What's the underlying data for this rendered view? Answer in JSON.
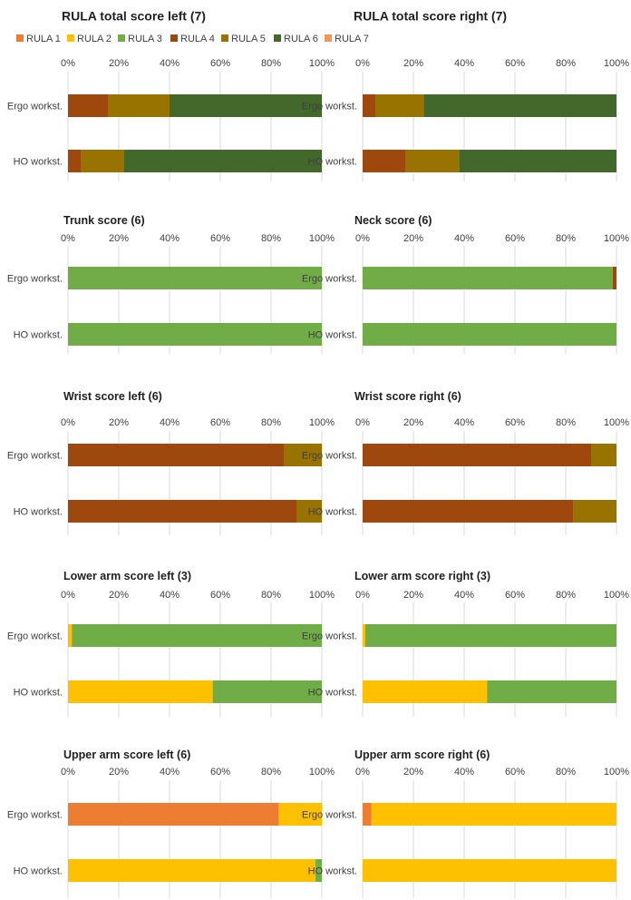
{
  "legend": [
    {
      "name": "RULA 1",
      "color": "#ED7D31"
    },
    {
      "name": "RULA 2",
      "color": "#FFC000"
    },
    {
      "name": "RULA 3",
      "color": "#70AD47"
    },
    {
      "name": "RULA 4",
      "color": "#9E480E"
    },
    {
      "name": "RULA 5",
      "color": "#997300"
    },
    {
      "name": "RULA 6",
      "color": "#43682B"
    },
    {
      "name": "RULA 7",
      "color": "#F1975A"
    }
  ],
  "chart_data": [
    {
      "type": "bar",
      "orientation": "horizontal",
      "stacked": "percent",
      "title": "RULA total score left (7)",
      "categories": [
        "Ergo workst.",
        "HO workst."
      ],
      "xticks": [
        "0%",
        "20%",
        "40%",
        "60%",
        "80%",
        "100%"
      ],
      "xlim": [
        0,
        100
      ],
      "grid": true,
      "series": [
        {
          "name": "RULA 4",
          "values": [
            16,
            5
          ]
        },
        {
          "name": "RULA 5",
          "values": [
            24,
            17
          ]
        },
        {
          "name": "RULA 6",
          "values": [
            60,
            78
          ]
        }
      ]
    },
    {
      "type": "bar",
      "orientation": "horizontal",
      "stacked": "percent",
      "title": "RULA total score right (7)",
      "categories": [
        "Ergo workst.",
        "HO workst."
      ],
      "xticks": [
        "0%",
        "20%",
        "40%",
        "60%",
        "80%",
        "100%"
      ],
      "xlim": [
        0,
        100
      ],
      "grid": true,
      "series": [
        {
          "name": "RULA 4",
          "values": [
            5,
            17
          ]
        },
        {
          "name": "RULA 5",
          "values": [
            19,
            21
          ]
        },
        {
          "name": "RULA 6",
          "values": [
            76,
            62
          ]
        }
      ]
    },
    {
      "type": "bar",
      "orientation": "horizontal",
      "stacked": "percent",
      "title": "Trunk score (6)",
      "categories": [
        "Ergo workst.",
        "HO workst."
      ],
      "xticks": [
        "0%",
        "20%",
        "40%",
        "60%",
        "80%",
        "100%"
      ],
      "xlim": [
        0,
        100
      ],
      "grid": true,
      "series": [
        {
          "name": "RULA 3",
          "values": [
            100,
            100
          ]
        }
      ]
    },
    {
      "type": "bar",
      "orientation": "horizontal",
      "stacked": "percent",
      "title": "Neck score (6)",
      "categories": [
        "Ergo workst.",
        "HO workst."
      ],
      "xticks": [
        "0%",
        "20%",
        "40%",
        "60%",
        "80%",
        "100%"
      ],
      "xlim": [
        0,
        100
      ],
      "grid": true,
      "series": [
        {
          "name": "RULA 3",
          "values": [
            98.5,
            100
          ]
        },
        {
          "name": "RULA 4",
          "values": [
            1.5,
            0
          ]
        }
      ]
    },
    {
      "type": "bar",
      "orientation": "horizontal",
      "stacked": "percent",
      "title": "Wrist score left (6)",
      "categories": [
        "Ergo workst.",
        "HO workst."
      ],
      "xticks": [
        "0%",
        "20%",
        "40%",
        "60%",
        "80%",
        "100%"
      ],
      "xlim": [
        0,
        100
      ],
      "grid": true,
      "series": [
        {
          "name": "RULA 4",
          "values": [
            85,
            90
          ]
        },
        {
          "name": "RULA 5",
          "values": [
            15,
            10
          ]
        }
      ]
    },
    {
      "type": "bar",
      "orientation": "horizontal",
      "stacked": "percent",
      "title": "Wrist score right (6)",
      "categories": [
        "Ergo workst.",
        "HO workst."
      ],
      "xticks": [
        "0%",
        "20%",
        "40%",
        "60%",
        "80%",
        "100%"
      ],
      "xlim": [
        0,
        100
      ],
      "grid": true,
      "series": [
        {
          "name": "RULA 4",
          "values": [
            90,
            83
          ]
        },
        {
          "name": "RULA 5",
          "values": [
            10,
            17
          ]
        }
      ]
    },
    {
      "type": "bar",
      "orientation": "horizontal",
      "stacked": "percent",
      "title": "Lower arm score left (3)",
      "categories": [
        "Ergo workst.",
        "HO workst."
      ],
      "xticks": [
        "0%",
        "20%",
        "40%",
        "60%",
        "80%",
        "100%"
      ],
      "xlim": [
        0,
        100
      ],
      "grid": true,
      "series": [
        {
          "name": "RULA 2",
          "values": [
            1.5,
            57
          ]
        },
        {
          "name": "RULA 3",
          "values": [
            98.5,
            43
          ]
        }
      ]
    },
    {
      "type": "bar",
      "orientation": "horizontal",
      "stacked": "percent",
      "title": "Lower arm score right (3)",
      "categories": [
        "Ergo workst.",
        "HO workst."
      ],
      "xticks": [
        "0%",
        "20%",
        "40%",
        "60%",
        "80%",
        "100%"
      ],
      "xlim": [
        0,
        100
      ],
      "grid": true,
      "series": [
        {
          "name": "RULA 2",
          "values": [
            1,
            49
          ]
        },
        {
          "name": "RULA 3",
          "values": [
            99,
            51
          ]
        }
      ]
    },
    {
      "type": "bar",
      "orientation": "horizontal",
      "stacked": "percent",
      "title": "Upper arm score left (6)",
      "categories": [
        "Ergo workst.",
        "HO workst."
      ],
      "xticks": [
        "0%",
        "20%",
        "40%",
        "60%",
        "80%",
        "100%"
      ],
      "xlim": [
        0,
        100
      ],
      "grid": true,
      "series": [
        {
          "name": "RULA 1",
          "values": [
            83,
            0
          ]
        },
        {
          "name": "RULA 2",
          "values": [
            17,
            97.5
          ]
        },
        {
          "name": "RULA 3",
          "values": [
            0,
            2.5
          ]
        }
      ]
    },
    {
      "type": "bar",
      "orientation": "horizontal",
      "stacked": "percent",
      "title": "Upper arm score right (6)",
      "categories": [
        "Ergo workst.",
        "HO workst."
      ],
      "xticks": [
        "0%",
        "20%",
        "40%",
        "60%",
        "80%",
        "100%"
      ],
      "xlim": [
        0,
        100
      ],
      "grid": true,
      "series": [
        {
          "name": "RULA 1",
          "values": [
            3.5,
            0
          ]
        },
        {
          "name": "RULA 2",
          "values": [
            96.5,
            100
          ]
        }
      ]
    }
  ]
}
